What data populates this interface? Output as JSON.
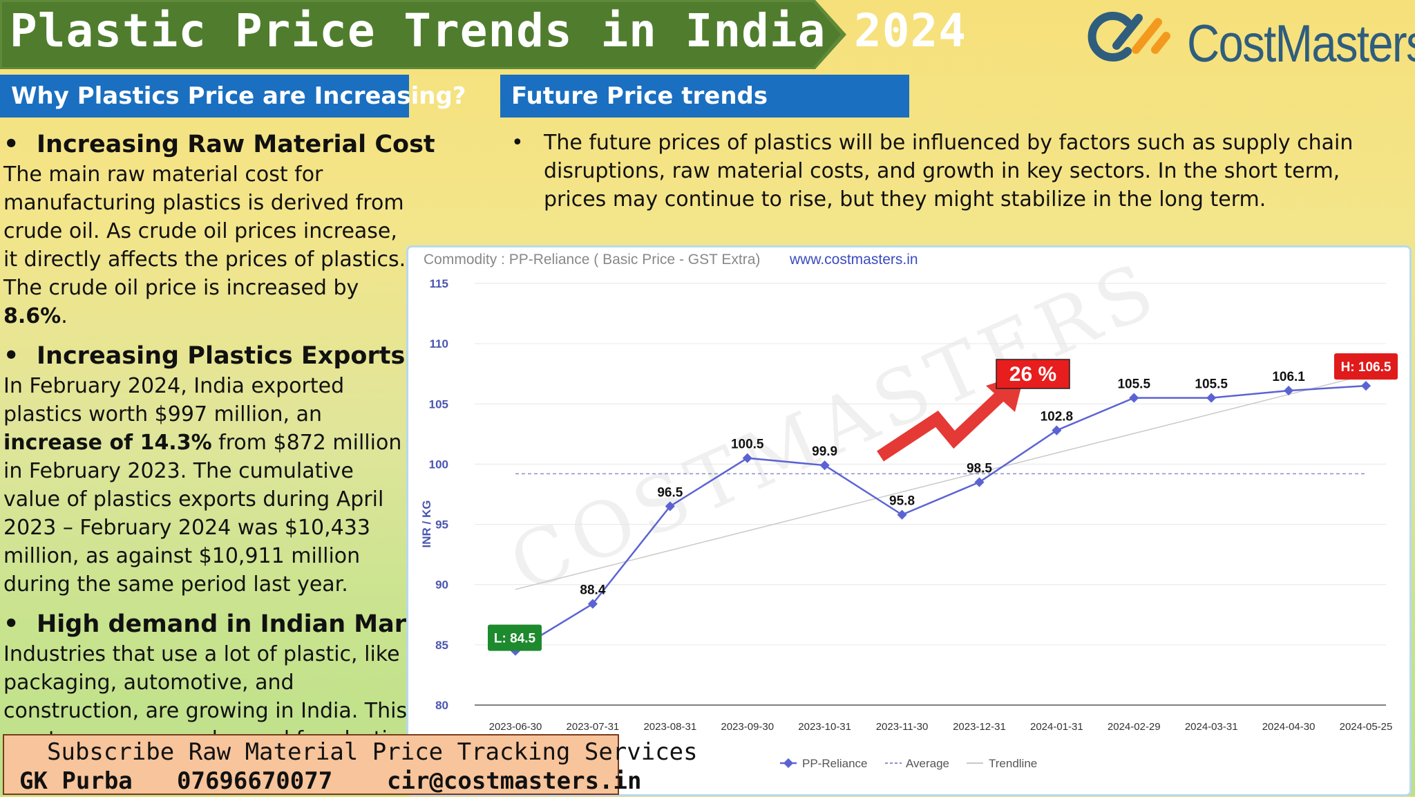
{
  "title": "Plastic Price Trends in India 2024",
  "logo": {
    "name": "CostMasters"
  },
  "why_section": {
    "heading": "Why Plastics Price are Increasing?",
    "bullets": [
      {
        "title": "Increasing Raw Material Cost",
        "text": "The main raw material cost for manufacturing plastics is derived from crude oil. As crude oil prices increase, it directly affects the prices of plastics. The crude oil price is increased by ",
        "bold": "8.6%",
        "text_after": "."
      },
      {
        "title": "Increasing Plastics Exports",
        "text": "In February 2024, India exported plastics worth $997 million, an ",
        "bold": "increase of 14.3%",
        "text_after": " from $872 million in February 2023. The cumulative value of plastics exports during April 2023 – February 2024 was $10,433 million, as against $10,911 million during the same period last year."
      },
      {
        "title": "High demand in Indian Market",
        "text": "Industries that use a lot of plastic, like packaging, automotive, and construction, are growing in India. This creates even more demand for plastic, driving prices up",
        "bold": "",
        "text_after": ""
      }
    ]
  },
  "future_section": {
    "heading": "Future Price trends",
    "text": "The future prices of plastics will be influenced by factors such as supply chain disruptions, raw material costs, and growth in key sectors. In the short term, prices may continue to rise, but they might stabilize in the long term."
  },
  "chart_data": {
    "type": "line",
    "subtitle": "Commodity : PP-Reliance ( Basic Price - GST Extra)",
    "website": "www.costmasters.in",
    "ylabel": "INR / KG",
    "ylim": [
      80,
      115
    ],
    "yticks": [
      80,
      85,
      90,
      95,
      100,
      105,
      110,
      115
    ],
    "categories": [
      "2023-06-30",
      "2023-07-31",
      "2023-08-31",
      "2023-09-30",
      "2023-10-31",
      "2023-11-30",
      "2023-12-31",
      "2024-01-31",
      "2024-02-29",
      "2024-03-31",
      "2024-04-30",
      "2024-05-25"
    ],
    "series": [
      {
        "name": "PP-Reliance",
        "values": [
          84.5,
          88.4,
          96.5,
          100.5,
          99.9,
          95.8,
          98.5,
          102.8,
          105.5,
          105.5,
          106.1,
          106.5
        ],
        "color": "#5b63d3"
      }
    ],
    "data_labels": [
      "L: 84.5",
      "88.4",
      "96.5",
      "100.5",
      "99.9",
      "95.8",
      "98.5",
      "102.8",
      "105.5",
      "105.5",
      "106.1",
      "H: 106.5"
    ],
    "average": {
      "name": "Average",
      "value": 99.2
    },
    "trendline": {
      "name": "Trendline",
      "start": 89.6,
      "end": 107.4
    },
    "annotation": "26 %",
    "watermark": "COSTMASTERS",
    "legend_position": "bottom",
    "colors": {
      "low": "#1e8a2e",
      "high": "#e01b1b",
      "arrow": "#e53935"
    }
  },
  "footer": {
    "line1": "Subscribe Raw Material Price Tracking Services",
    "name": "GK Purba",
    "phone": "07696670077",
    "email": "cir@costmasters.in"
  }
}
